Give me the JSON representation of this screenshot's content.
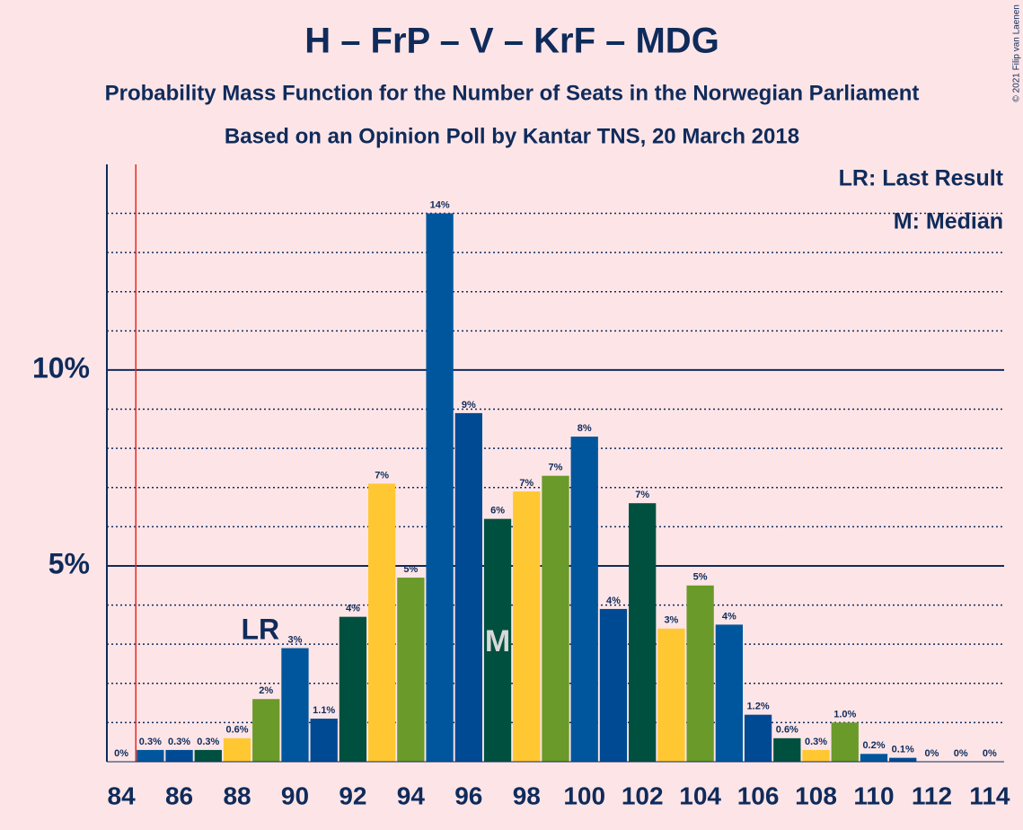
{
  "chart_data": {
    "type": "bar",
    "title": "H – FrP – V – KrF – MDG",
    "subtitle": "Probability Mass Function for the Number of Seats in the Norwegian Parliament",
    "subtitle2": "Based on an Opinion Poll by Kantar TNS, 20 March 2018",
    "copyright": "© 2021 Filip van Laenen",
    "legend_lr": "LR: Last Result",
    "legend_m": "M: Median",
    "x": [
      84,
      85,
      86,
      87,
      88,
      89,
      90,
      91,
      92,
      93,
      94,
      95,
      96,
      97,
      98,
      99,
      100,
      101,
      102,
      103,
      104,
      105,
      106,
      107,
      108,
      109,
      110,
      111,
      112,
      113,
      114
    ],
    "values": [
      0,
      0.3,
      0.3,
      0.3,
      0.6,
      1.6,
      2.9,
      1.1,
      3.7,
      7.1,
      4.7,
      14,
      8.9,
      6.2,
      6.9,
      7.3,
      8.3,
      3.9,
      6.6,
      3.4,
      4.5,
      3.5,
      1.2,
      0.6,
      0.3,
      1.0,
      0.2,
      0.1,
      0,
      0,
      0
    ],
    "value_labels": [
      "0%",
      "0.3%",
      "0.3%",
      "0.3%",
      "0.6%",
      "2%",
      "3%",
      "1.1%",
      "4%",
      "7%",
      "5%",
      "14%",
      "9%",
      "6%",
      "7%",
      "7%",
      "8%",
      "4%",
      "7%",
      "3%",
      "5%",
      "4%",
      "1.2%",
      "0.6%",
      "0.3%",
      "1.0%",
      "0.2%",
      "0.1%",
      "0%",
      "0%",
      "0%"
    ],
    "colors": [
      "#6a9a2a",
      "#00569c",
      "#004a94",
      "#00503f",
      "#ffc832",
      "#6a9a2a",
      "#00569c",
      "#004a94",
      "#00503f",
      "#ffc832",
      "#6a9a2a",
      "#00569c",
      "#004a94",
      "#00503f",
      "#ffc832",
      "#6a9a2a",
      "#00569c",
      "#004a94",
      "#00503f",
      "#ffc832",
      "#6a9a2a",
      "#00569c",
      "#004a94",
      "#00503f",
      "#ffc832",
      "#6a9a2a",
      "#00569c",
      "#004a94",
      "#00503f",
      "#ffc832",
      "#6a9a2a"
    ],
    "xlim": [
      83.5,
      114.5
    ],
    "xticks": [
      84,
      86,
      88,
      90,
      92,
      94,
      96,
      98,
      100,
      102,
      104,
      106,
      108,
      110,
      112,
      114
    ],
    "ylim": [
      0,
      15.25
    ],
    "yticks": [
      {
        "value": 5,
        "label": "5%"
      },
      {
        "value": 10,
        "label": "10%"
      }
    ],
    "minor_yticks": [
      1,
      2,
      3,
      4,
      6,
      7,
      8,
      9,
      11,
      12,
      13,
      14
    ],
    "majority": 85,
    "last_result": {
      "x": 89,
      "label": "LR"
    },
    "median": {
      "x": 97,
      "label": "M"
    }
  }
}
